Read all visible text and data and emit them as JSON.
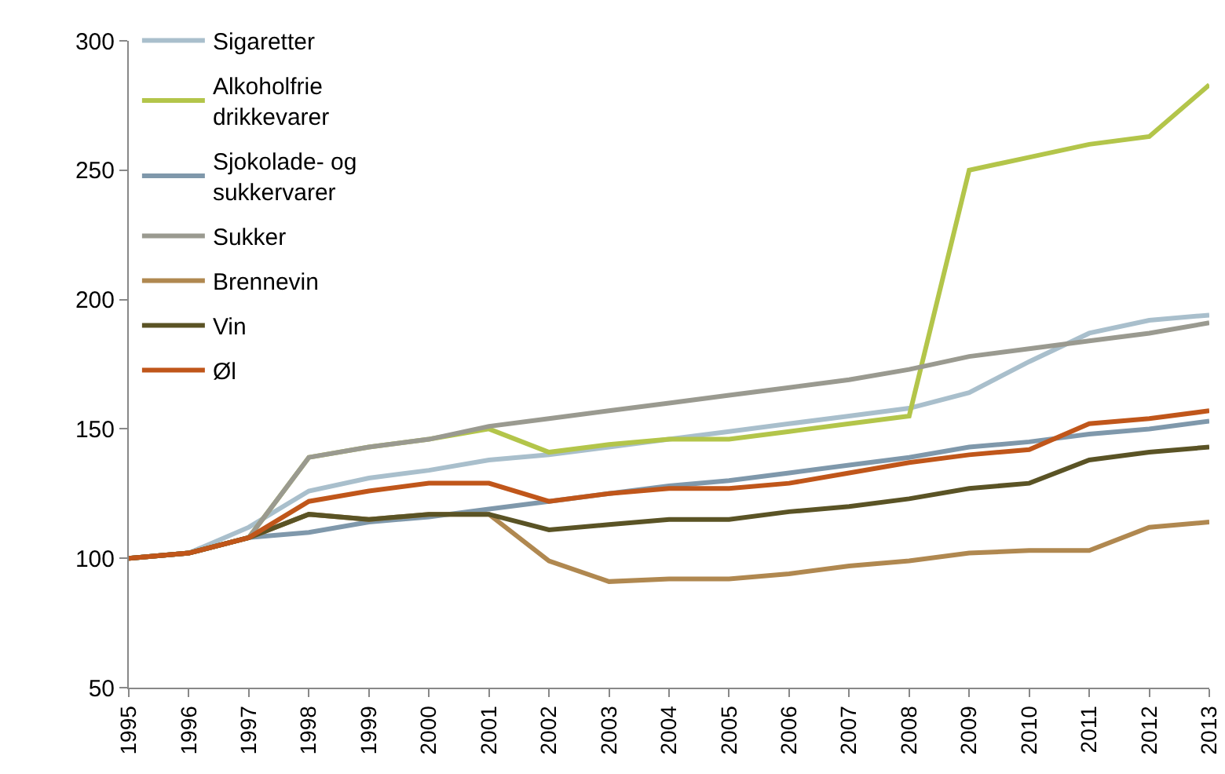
{
  "chart_data": {
    "type": "line",
    "categories": [
      "1995",
      "1996",
      "1997",
      "1998",
      "1999",
      "2000",
      "2001",
      "2002",
      "2003",
      "2004",
      "2005",
      "2006",
      "2007",
      "2008",
      "2009",
      "2010",
      "2011",
      "2012",
      "2013"
    ],
    "ylim": [
      50,
      300
    ],
    "yticks": [
      50,
      100,
      150,
      200,
      250,
      300
    ],
    "grid": false,
    "legend": "top left",
    "marker": "none",
    "line_style": "solid",
    "series": [
      {
        "name": "Sigaretter",
        "color": "#a9bfcc",
        "values": [
          100,
          102,
          112,
          126,
          131,
          134,
          138,
          140,
          143,
          146,
          149,
          152,
          155,
          158,
          164,
          176,
          187,
          192,
          194
        ]
      },
      {
        "name": "Alkoholfrie drikkevarer",
        "color": "#b3c54a",
        "values": [
          100,
          102,
          108,
          139,
          143,
          146,
          150,
          141,
          144,
          146,
          146,
          149,
          152,
          155,
          250,
          255,
          260,
          263,
          283
        ]
      },
      {
        "name": "Sjokolade- og sukkervarer",
        "color": "#7f98ab",
        "values": [
          100,
          102,
          108,
          110,
          114,
          116,
          119,
          122,
          125,
          128,
          130,
          133,
          136,
          139,
          143,
          145,
          148,
          150,
          153
        ]
      },
      {
        "name": "Sukker",
        "color": "#9a9a90",
        "values": [
          100,
          102,
          108,
          139,
          143,
          146,
          151,
          154,
          157,
          160,
          163,
          166,
          169,
          173,
          178,
          181,
          184,
          187,
          191
        ]
      },
      {
        "name": "Brennevin",
        "color": "#b08850",
        "values": [
          100,
          102,
          108,
          117,
          115,
          117,
          117,
          99,
          91,
          92,
          92,
          94,
          97,
          99,
          102,
          103,
          103,
          112,
          114
        ]
      },
      {
        "name": "Vin",
        "color": "#5a5325",
        "values": [
          100,
          102,
          108,
          117,
          115,
          117,
          117,
          111,
          113,
          115,
          115,
          118,
          120,
          123,
          127,
          129,
          138,
          141,
          143
        ]
      },
      {
        "name": "Øl",
        "color": "#c0561a",
        "values": [
          100,
          102,
          108,
          122,
          126,
          129,
          129,
          122,
          125,
          127,
          127,
          129,
          133,
          137,
          140,
          142,
          152,
          154,
          157
        ]
      }
    ]
  }
}
